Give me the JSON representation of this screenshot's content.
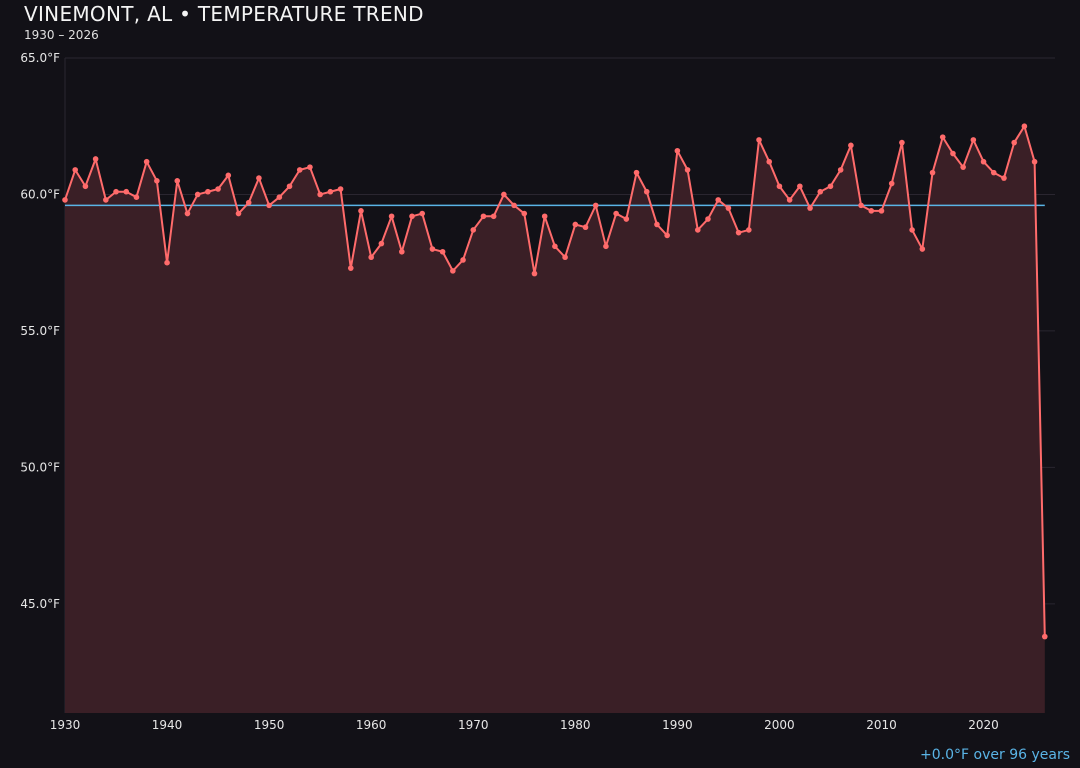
{
  "header": {
    "title": "VINEMONT, AL • TEMPERATURE TREND",
    "subtitle": "1930 – 2026"
  },
  "footer": {
    "trend_text": "+0.0°F over 96 years"
  },
  "colors": {
    "background": "#121117",
    "line": "#ff6b6b",
    "fill": "#3a1f26",
    "mean_line": "#5ab4e6",
    "grid": "#2a2630"
  },
  "chart_data": {
    "type": "area",
    "title": "VINEMONT, AL • TEMPERATURE TREND",
    "subtitle": "1930 – 2026",
    "xlim": [
      1930,
      2027
    ],
    "ylim": [
      41.0,
      65.0
    ],
    "grid": true,
    "x_ticks": [
      1930,
      1940,
      1950,
      1960,
      1970,
      1980,
      1990,
      2000,
      2010,
      2020
    ],
    "y_ticks": [
      45,
      50,
      55,
      60,
      65
    ],
    "y_tick_labels": [
      "45.0°F",
      "50.0°F",
      "55.0°F",
      "60.0°F",
      "65.0°F"
    ],
    "mean": 59.6,
    "x": [
      1930,
      1931,
      1932,
      1933,
      1934,
      1935,
      1936,
      1937,
      1938,
      1939,
      1940,
      1941,
      1942,
      1943,
      1944,
      1945,
      1946,
      1947,
      1948,
      1949,
      1950,
      1951,
      1952,
      1953,
      1954,
      1955,
      1956,
      1957,
      1958,
      1959,
      1960,
      1961,
      1962,
      1963,
      1964,
      1965,
      1966,
      1967,
      1968,
      1969,
      1970,
      1971,
      1972,
      1973,
      1974,
      1975,
      1976,
      1977,
      1978,
      1979,
      1980,
      1981,
      1982,
      1983,
      1984,
      1985,
      1986,
      1987,
      1988,
      1989,
      1990,
      1991,
      1992,
      1993,
      1994,
      1995,
      1996,
      1997,
      1998,
      1999,
      2000,
      2001,
      2002,
      2003,
      2004,
      2005,
      2006,
      2007,
      2008,
      2009,
      2010,
      2011,
      2012,
      2013,
      2014,
      2015,
      2016,
      2017,
      2018,
      2019,
      2020,
      2021,
      2022,
      2023,
      2024,
      2025,
      2026
    ],
    "values": [
      59.8,
      60.9,
      60.3,
      61.3,
      59.8,
      60.1,
      60.1,
      59.9,
      61.2,
      60.5,
      57.5,
      60.5,
      59.3,
      60.0,
      60.1,
      60.2,
      60.7,
      59.3,
      59.7,
      60.6,
      59.6,
      59.9,
      60.3,
      60.9,
      61.0,
      60.0,
      60.1,
      60.2,
      57.3,
      59.4,
      57.7,
      58.2,
      59.2,
      57.9,
      59.2,
      59.3,
      58.0,
      57.9,
      57.2,
      57.6,
      58.7,
      59.2,
      59.2,
      60.0,
      59.6,
      59.3,
      57.1,
      59.2,
      58.1,
      57.7,
      58.9,
      58.8,
      59.6,
      58.1,
      59.3,
      59.1,
      60.8,
      60.1,
      58.9,
      58.5,
      61.6,
      60.9,
      58.7,
      59.1,
      59.8,
      59.5,
      58.6,
      58.7,
      62.0,
      61.2,
      60.3,
      59.8,
      60.3,
      59.5,
      60.1,
      60.3,
      60.9,
      61.8,
      59.6,
      59.4,
      59.4,
      60.4,
      61.9,
      58.7,
      58.0,
      60.8,
      62.1,
      61.5,
      61.0,
      62.0,
      61.2,
      60.8,
      60.6,
      61.9,
      62.5,
      61.2,
      43.8
    ]
  }
}
